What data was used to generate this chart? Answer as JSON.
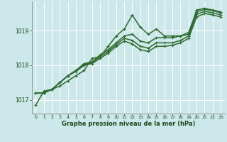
{
  "background_color": "#cce8ea",
  "grid_color": "#ffffff",
  "line_color": "#2d6a2d",
  "text_color": "#1a4a1a",
  "xlabel": "Graphe pression niveau de la mer (hPa)",
  "xlim": [
    -0.5,
    23.5
  ],
  "ylim": [
    1016.6,
    1019.85
  ],
  "yticks": [
    1017,
    1018,
    1019
  ],
  "xticks": [
    0,
    1,
    2,
    3,
    4,
    5,
    6,
    7,
    8,
    9,
    10,
    11,
    12,
    13,
    14,
    15,
    16,
    17,
    18,
    19,
    20,
    21,
    22,
    23
  ],
  "series": [
    [
      1016.85,
      1017.25,
      1017.3,
      1017.4,
      1017.55,
      1017.7,
      1017.85,
      1018.2,
      1018.25,
      1018.55,
      1018.85,
      1019.05,
      1019.45,
      1019.1,
      1018.9,
      1019.05,
      1018.85,
      1018.85,
      1018.85,
      1018.9,
      1019.6,
      1019.65,
      1019.6,
      1019.55
    ],
    [
      1017.2,
      1017.2,
      1017.3,
      1017.5,
      1017.7,
      1017.85,
      1018.05,
      1018.1,
      1018.3,
      1018.45,
      1018.65,
      1018.85,
      1018.9,
      1018.7,
      1018.65,
      1018.8,
      1018.8,
      1018.8,
      1018.85,
      1018.95,
      1019.55,
      1019.62,
      1019.58,
      1019.52
    ],
    [
      1017.2,
      1017.2,
      1017.3,
      1017.5,
      1017.7,
      1017.85,
      1018.02,
      1018.08,
      1018.25,
      1018.4,
      1018.6,
      1018.78,
      1018.72,
      1018.55,
      1018.5,
      1018.65,
      1018.65,
      1018.65,
      1018.72,
      1018.85,
      1019.48,
      1019.56,
      1019.52,
      1019.46
    ],
    [
      1017.2,
      1017.2,
      1017.3,
      1017.5,
      1017.7,
      1017.82,
      1018.0,
      1018.05,
      1018.2,
      1018.35,
      1018.55,
      1018.7,
      1018.62,
      1018.45,
      1018.4,
      1018.55,
      1018.55,
      1018.58,
      1018.65,
      1018.78,
      1019.4,
      1019.5,
      1019.46,
      1019.4
    ]
  ]
}
